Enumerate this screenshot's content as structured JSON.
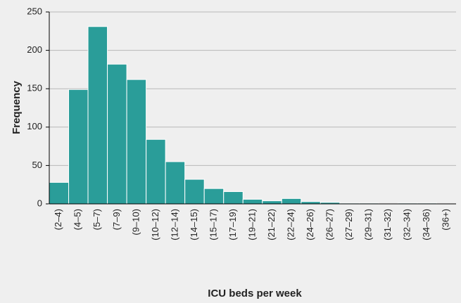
{
  "chart_data": {
    "type": "bar",
    "xlabel": "ICU beds per week",
    "ylabel": "Frequency",
    "categories": [
      "(2–4)",
      "(4–5)",
      "(5–7)",
      "(7–9)",
      "(9–10)",
      "(10–12)",
      "(12–14)",
      "(14–15)",
      "(15–17)",
      "(17–19)",
      "(19–21)",
      "(21–22)",
      "(22–24)",
      "(24–26)",
      "(26–27)",
      "(27–29)",
      "(29–31)",
      "(31–32)",
      "(32–34)",
      "(34–36)",
      "(36+)"
    ],
    "values": [
      28,
      149,
      231,
      182,
      162,
      84,
      55,
      32,
      20,
      16,
      6,
      4,
      7,
      3,
      2,
      1,
      1,
      0,
      1,
      1,
      0
    ],
    "color": "#2a9d99",
    "ylim": [
      0,
      250
    ],
    "yticks": [
      0,
      50,
      100,
      150,
      200,
      250
    ],
    "grid": true
  }
}
